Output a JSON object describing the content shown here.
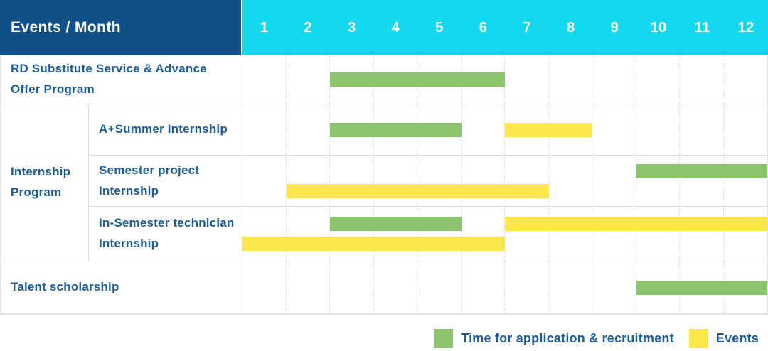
{
  "chart_data": {
    "type": "gantt-table",
    "title_cell": "Events / Month",
    "months": [
      "1",
      "2",
      "3",
      "4",
      "5",
      "6",
      "7",
      "8",
      "9",
      "10",
      "11",
      "12"
    ],
    "axis": {
      "min_month": 1,
      "max_month": 12,
      "grid": "dashed-vertical"
    },
    "group_label": "Internship Program",
    "rows": [
      {
        "label": "RD Substitute Service & Advance Offer Program",
        "group": null,
        "bars": [
          {
            "series": "Time for application & recruitment",
            "color": "green",
            "start_month": 3,
            "end_month": 6,
            "lane": "single"
          }
        ]
      },
      {
        "label": "A+Summer Internship",
        "group": "Internship Program",
        "bars": [
          {
            "series": "Time for application & recruitment",
            "color": "green",
            "start_month": 3,
            "end_month": 5,
            "lane": "single"
          },
          {
            "series": "Events",
            "color": "yellow",
            "start_month": 7,
            "end_month": 8,
            "lane": "single"
          }
        ]
      },
      {
        "label": "Semester project Internship",
        "group": "Internship Program",
        "bars": [
          {
            "series": "Time for application & recruitment",
            "color": "green",
            "start_month": 10,
            "end_month": 12,
            "lane": "top"
          },
          {
            "series": "Events",
            "color": "yellow",
            "start_month": 2,
            "end_month": 7,
            "lane": "bottom"
          }
        ]
      },
      {
        "label": "In-Semester technician Internship",
        "group": "Internship Program",
        "bars": [
          {
            "series": "Time for application & recruitment",
            "color": "green",
            "start_month": 3,
            "end_month": 5,
            "lane": "top"
          },
          {
            "series": "Events",
            "color": "yellow",
            "start_month": 7,
            "end_month": 12,
            "lane": "top"
          },
          {
            "series": "Events",
            "color": "yellow",
            "start_month": 1,
            "end_month": 6,
            "lane": "bottom"
          }
        ]
      },
      {
        "label": "Talent scholarship",
        "group": null,
        "bars": [
          {
            "series": "Time for application & recruitment",
            "color": "green",
            "start_month": 10,
            "end_month": 12,
            "lane": "single"
          }
        ]
      }
    ]
  },
  "legend": {
    "items": [
      {
        "label": "Time for application & recruitment",
        "color": "#8bc46b",
        "swatch": "green"
      },
      {
        "label": "Events",
        "color": "#fde54c",
        "swatch": "yellow"
      }
    ]
  },
  "colors": {
    "header_navy": "#0f5089",
    "header_cyan": "#14d8ee",
    "bar_green": "#8bc46b",
    "bar_yellow": "#fde54c",
    "label_text": "#1b5c9d",
    "grid_line": "#e4e4e4"
  }
}
